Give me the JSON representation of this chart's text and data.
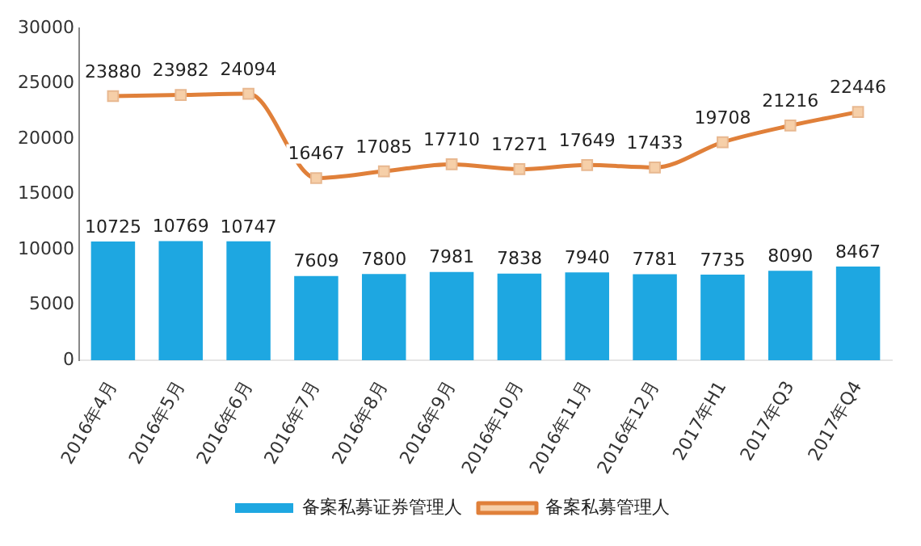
{
  "chart_data": {
    "type": "bar",
    "categories": [
      "2016年4月",
      "2016年5月",
      "2016年6月",
      "2016年7月",
      "2016年8月",
      "2016年9月",
      "2016年10月",
      "2016年11月",
      "2016年12月",
      "2017年H1",
      "2017年Q3",
      "2017年Q4"
    ],
    "series": [
      {
        "name": "备案私募证券管理人",
        "color": "#1ea7e1",
        "values": [
          10725,
          10769,
          10747,
          7609,
          7800,
          7981,
          7838,
          7940,
          7781,
          7735,
          8090,
          8467
        ]
      },
      {
        "name": "备案私募管理人",
        "type": "line",
        "color": "#e0803a",
        "marker": "square",
        "values": [
          23880,
          23982,
          24094,
          16467,
          17085,
          17710,
          17271,
          17649,
          17433,
          19708,
          21216,
          22446
        ]
      }
    ],
    "ylim": [
      0,
      30000
    ],
    "yticks": [
      0,
      5000,
      10000,
      15000,
      20000,
      25000,
      30000
    ],
    "grid": false,
    "legend": "bottom",
    "data_labels": true
  }
}
